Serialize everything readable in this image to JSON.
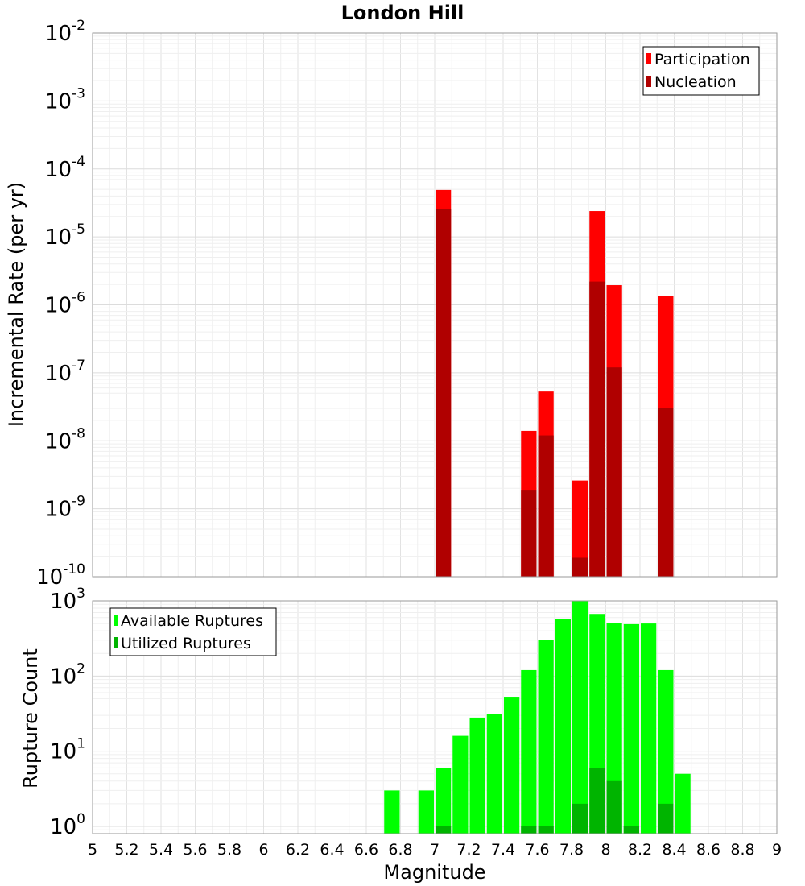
{
  "chart_data": [
    {
      "type": "bar",
      "title": "London Hill",
      "ylabel": "Incremental Rate (per yr)",
      "xlabel": "",
      "yscale": "log",
      "ylim": [
        1e-10,
        0.01
      ],
      "xlim": [
        5,
        9
      ],
      "bin_width": 0.1,
      "ytick_bases": [
        "10",
        "10",
        "10",
        "10",
        "10",
        "10",
        "10",
        "10",
        "10"
      ],
      "ytick_exponents": [
        "-10",
        "-9",
        "-8",
        "-7",
        "-6",
        "-5",
        "-4",
        "-3",
        "-2"
      ],
      "grid": true,
      "legend_position": "top-right",
      "legend": [
        "Participation",
        "Nucleation"
      ],
      "colors": {
        "Participation": "#ff0000",
        "Nucleation": "#b00000"
      },
      "series": [
        {
          "name": "Participation",
          "x": [
            7.05,
            7.55,
            7.65,
            7.85,
            7.95,
            8.05,
            8.35
          ],
          "values": [
            4.9e-05,
            1.4e-08,
            5.3e-08,
            2.6e-09,
            2.4e-05,
            1.95e-06,
            1.35e-06
          ]
        },
        {
          "name": "Nucleation",
          "x": [
            7.05,
            7.55,
            7.65,
            7.85,
            7.95,
            8.05,
            8.35
          ],
          "values": [
            2.6e-05,
            1.9e-09,
            1.2e-08,
            1.9e-10,
            2.2e-06,
            1.2e-07,
            3e-08
          ]
        }
      ]
    },
    {
      "type": "bar",
      "title": "",
      "ylabel": "Rupture Count",
      "xlabel": "Magnitude",
      "yscale": "log",
      "ylim": [
        0.8,
        1000
      ],
      "xlim": [
        5,
        9
      ],
      "bin_width": 0.1,
      "ytick_bases": [
        "10",
        "10",
        "10",
        "10"
      ],
      "ytick_exponents": [
        "0",
        "1",
        "2",
        "3"
      ],
      "xticks": [
        "5",
        "5.2",
        "5.4",
        "5.6",
        "5.8",
        "6",
        "6.2",
        "6.4",
        "6.6",
        "6.8",
        "7",
        "7.2",
        "7.4",
        "7.6",
        "7.8",
        "8",
        "8.2",
        "8.4",
        "8.6",
        "8.8",
        "9"
      ],
      "grid": true,
      "legend_position": "top-left",
      "legend": [
        "Available Ruptures",
        "Utilized Ruptures"
      ],
      "colors": {
        "Available Ruptures": "#00ff00",
        "Utilized Ruptures": "#00b400"
      },
      "series": [
        {
          "name": "Available Ruptures",
          "x": [
            6.75,
            6.95,
            7.05,
            7.15,
            7.25,
            7.35,
            7.45,
            7.55,
            7.65,
            7.75,
            7.85,
            7.95,
            8.05,
            8.15,
            8.25,
            8.35,
            8.45
          ],
          "values": [
            3,
            3,
            6,
            16,
            28,
            31,
            53,
            120,
            300,
            570,
            1000,
            670,
            510,
            490,
            500,
            120,
            5
          ]
        },
        {
          "name": "Utilized Ruptures",
          "x": [
            7.05,
            7.55,
            7.65,
            7.85,
            7.95,
            8.05,
            8.15,
            8.35
          ],
          "values": [
            1,
            1,
            1,
            2,
            6,
            4,
            1,
            2
          ]
        }
      ]
    }
  ]
}
